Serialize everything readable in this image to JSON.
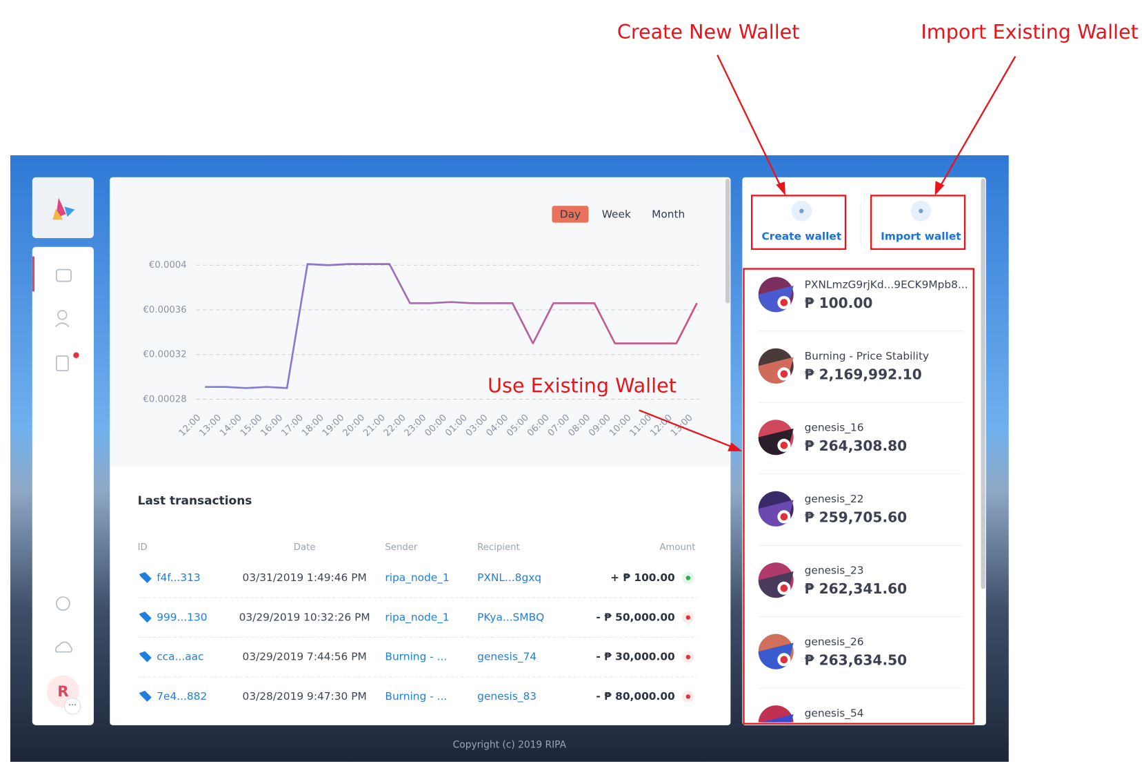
{
  "annotations": {
    "create": "Create New Wallet",
    "import": "Import Existing Wallet",
    "use": "Use Existing Wallet"
  },
  "user_initial": "R",
  "chart_data": {
    "type": "line",
    "periods": [
      "Day",
      "Week",
      "Month"
    ],
    "x": [
      "12:00",
      "13:00",
      "14:00",
      "15:00",
      "16:00",
      "17:00",
      "18:00",
      "19:00",
      "20:00",
      "21:00",
      "22:00",
      "23:00",
      "00:00",
      "01:00",
      "03:00",
      "04:00",
      "05:00",
      "06:00",
      "07:00",
      "08:00",
      "09:00",
      "10:00",
      "11:00",
      "12:00",
      "13:00"
    ],
    "series": [
      {
        "values": [
          0.000291,
          0.000291,
          0.00029,
          0.000291,
          0.00029,
          0.000401,
          0.0004,
          0.000401,
          0.000401,
          0.000401,
          0.000366,
          0.000366,
          0.000367,
          0.000366,
          0.000366,
          0.000366,
          0.00033,
          0.000366,
          0.000366,
          0.000366,
          0.00033,
          0.00033,
          0.00033,
          0.00033,
          0.000366
        ],
        "colors": [
          "#7b80e2",
          "#d4507a"
        ]
      }
    ],
    "ylim": [
      0.00028,
      0.0004
    ],
    "yticks": [
      {
        "value": 0.00028,
        "label": "€0.00028"
      },
      {
        "value": 0.00032,
        "label": "€0.00032"
      },
      {
        "value": 0.00036,
        "label": "€0.00036"
      },
      {
        "value": 0.0004,
        "label": "€0.0004"
      }
    ],
    "grid": true
  },
  "transactions": {
    "title": "Last transactions",
    "columns": [
      "ID",
      "Date",
      "Sender",
      "Recipient",
      "Amount"
    ],
    "rows": [
      [
        "f4f...313",
        "03/31/2019 1:49:46 PM",
        "ripa_node_1",
        "PXNL...8gxq",
        "+ ₱ 100.00"
      ],
      [
        "999...130",
        "03/29/2019 10:32:26 PM",
        "ripa_node_1",
        "PKya...SMBQ",
        "- ₱ 50,000.00"
      ],
      [
        "cca...aac",
        "03/29/2019 7:44:56 PM",
        "Burning - ...",
        "genesis_74",
        "- ₱ 30,000.00"
      ],
      [
        "7e4...882",
        "03/28/2019 9:47:30 PM",
        "Burning - ...",
        "genesis_83",
        "- ₱ 80,000.00"
      ]
    ]
  },
  "wallets": {
    "buttons": [
      "Create wallet",
      "Import wallet"
    ],
    "items": [
      {
        "name": "PXNLmzG9rjKd...9ECK9Mpb8...",
        "balance": "₱ 100.00"
      },
      {
        "name": "Burning - Price Stability",
        "balance": "₱ 2,169,992.10"
      },
      {
        "name": "genesis_16",
        "balance": "₱ 264,308.80"
      },
      {
        "name": "genesis_22",
        "balance": "₱ 259,705.60"
      },
      {
        "name": "genesis_23",
        "balance": "₱ 262,341.60"
      },
      {
        "name": "genesis_26",
        "balance": "₱ 263,634.50"
      },
      {
        "name": "genesis_54"
      }
    ]
  },
  "footer": "Copyright (c) 2019 RIPA"
}
